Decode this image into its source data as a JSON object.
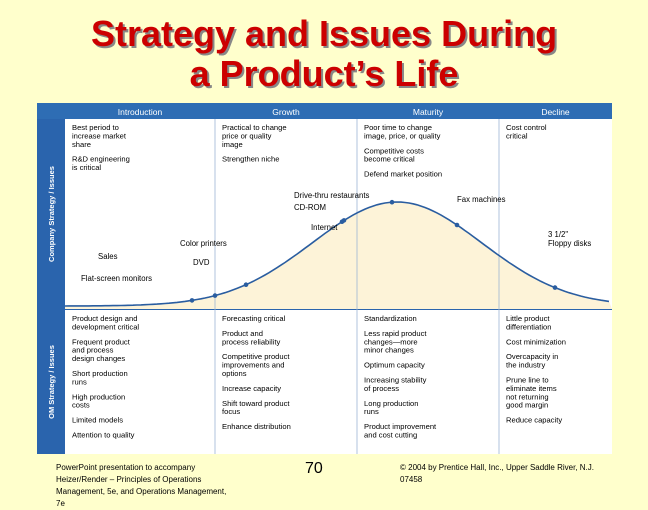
{
  "slide": {
    "title_line1": "Strategy and Issues During",
    "title_line2": "a Product’s Life",
    "page_number": "70",
    "footer_left": [
      "PowerPoint presentation to accompany",
      "Heizer/Render – Principles of Operations",
      "Management, 5e, and Operations Management,",
      "7e"
    ],
    "footer_right": [
      "© 2004 by Prentice Hall, Inc., Upper Saddle River, N.J.",
      "07458"
    ]
  },
  "figure": {
    "stages": [
      "Introduction",
      "Growth",
      "Maturity",
      "Decline"
    ],
    "side_labels": [
      "Company Strategy / Issues",
      "OM Strategy / Issues"
    ],
    "company_strategy": [
      [
        [
          "Best period to",
          "increase market",
          "share"
        ],
        [
          "R&D engineering",
          "is critical"
        ]
      ],
      [
        [
          "Practical to change",
          "price or quality",
          "image"
        ],
        [
          "Strengthen niche"
        ]
      ],
      [
        [
          "Poor time to change",
          "image, price, or quality"
        ],
        [
          "Competitive costs",
          "become critical"
        ],
        [
          "Defend market position"
        ]
      ],
      [
        [
          "Cost control",
          "critical"
        ]
      ]
    ],
    "curve_products": [
      [
        "Flat-screen monitors"
      ],
      [
        "Sales"
      ],
      [
        "DVD"
      ],
      [
        "Color printers"
      ],
      [
        "Internet"
      ],
      [
        "CD-ROM"
      ],
      [
        "Drive-thru restaurants"
      ],
      [
        "Fax machines"
      ],
      [
        "3 1/2\"",
        "Floppy disks"
      ]
    ],
    "om_strategy": [
      [
        [
          "Product design and",
          "development critical"
        ],
        [
          "Frequent product",
          "and process",
          "design changes"
        ],
        [
          "Short production",
          "runs"
        ],
        [
          "High production",
          "costs"
        ],
        [
          "Limited models"
        ],
        [
          "Attention to quality"
        ]
      ],
      [
        [
          "Forecasting critical"
        ],
        [
          "Product and",
          "process reliability"
        ],
        [
          "Competitive product",
          "improvements and",
          "options"
        ],
        [
          "Increase capacity"
        ],
        [
          "Shift toward product",
          "focus"
        ],
        [
          "Enhance distribution"
        ]
      ],
      [
        [
          "Standardization"
        ],
        [
          "Less rapid product",
          "changes—more",
          "minor changes"
        ],
        [
          "Optimum capacity"
        ],
        [
          "Increasing stability",
          "of process"
        ],
        [
          "Long production",
          "runs"
        ],
        [
          "Product improvement",
          "and cost cutting"
        ]
      ],
      [
        [
          "Little product",
          "differentiation"
        ],
        [
          "Cost minimization"
        ],
        [
          "Overcapacity in",
          "the industry"
        ],
        [
          "Prune line to",
          "eliminate items",
          "not returning",
          "good margin"
        ],
        [
          "Reduce capacity"
        ]
      ]
    ],
    "colors": {
      "title_red": "#cc0000",
      "frame_blue": "#2a64ad",
      "header_blue": "#2e6db4",
      "panel_white": "#ffffff",
      "curve_area_cream": "#fdf3d8",
      "curve_line": "#2a5da0"
    }
  }
}
